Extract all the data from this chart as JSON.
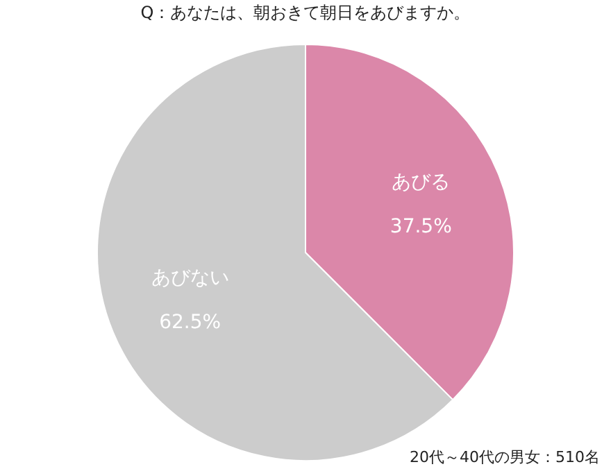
{
  "chart_data": {
    "type": "pie",
    "title": "Q：あなたは、朝おきて朝日をあびますか。",
    "categories": [
      "あびる",
      "あびない"
    ],
    "values": [
      37.5,
      62.5
    ],
    "value_labels": [
      "37.5%",
      "62.5%"
    ],
    "colors": [
      "#db87a9",
      "#cccccc"
    ],
    "legend": false,
    "annotations": [
      "20代～40代の男女：510名"
    ]
  }
}
